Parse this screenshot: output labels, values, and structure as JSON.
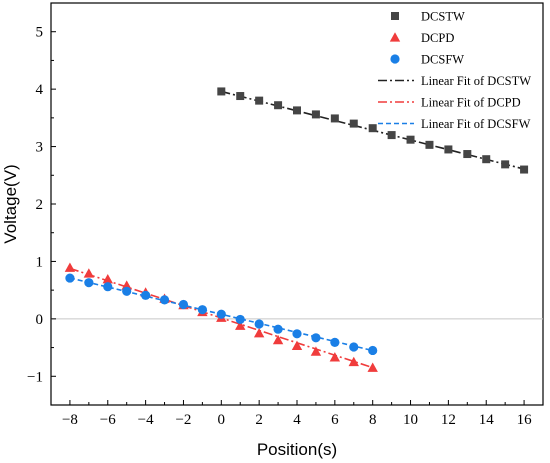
{
  "chart_data": {
    "type": "scatter",
    "title": "",
    "xlabel": "Position(s)",
    "ylabel": "Voltage(V)",
    "xlim": [
      -9,
      17
    ],
    "ylim": [
      -1.5,
      5.5
    ],
    "xticks": [
      -8,
      -6,
      -4,
      -2,
      0,
      2,
      4,
      6,
      8,
      10,
      12,
      14,
      16
    ],
    "yticks": [
      -1,
      0,
      1,
      2,
      3,
      4,
      5
    ],
    "grid": false,
    "zero_line": true,
    "legend_position": "top-right",
    "series": [
      {
        "name": "DCSTW",
        "marker": "square",
        "color": "#454545",
        "x": [
          0,
          1,
          2,
          3,
          4,
          5,
          6,
          7,
          8,
          9,
          10,
          11,
          12,
          13,
          14,
          15,
          16
        ],
        "y": [
          3.96,
          3.88,
          3.8,
          3.72,
          3.63,
          3.56,
          3.49,
          3.4,
          3.32,
          3.2,
          3.12,
          3.03,
          2.95,
          2.87,
          2.78,
          2.69,
          2.6
        ]
      },
      {
        "name": "DCPD",
        "marker": "triangle",
        "color": "#f03c3c",
        "x": [
          -8,
          -7,
          -6,
          -5,
          -4,
          -3,
          -2,
          -1,
          0,
          1,
          2,
          3,
          4,
          5,
          6,
          7,
          8
        ],
        "y": [
          0.89,
          0.79,
          0.69,
          0.58,
          0.46,
          0.35,
          0.24,
          0.12,
          0.02,
          -0.12,
          -0.25,
          -0.37,
          -0.47,
          -0.57,
          -0.67,
          -0.75,
          -0.85
        ]
      },
      {
        "name": "DCSFW",
        "marker": "circle",
        "color": "#1a7fe6",
        "x": [
          -8,
          -7,
          -6,
          -5,
          -4,
          -3,
          -2,
          -1,
          0,
          1,
          2,
          3,
          4,
          5,
          6,
          7,
          8
        ],
        "y": [
          0.71,
          0.63,
          0.56,
          0.48,
          0.41,
          0.33,
          0.25,
          0.16,
          0.08,
          -0.01,
          -0.09,
          -0.18,
          -0.26,
          -0.33,
          -0.41,
          -0.49,
          -0.55
        ]
      }
    ],
    "fits": [
      {
        "name": "Linear Fit of DCSTW",
        "color": "#222222",
        "dash": "dash-dot",
        "x": [
          0,
          16
        ],
        "slope": -0.0845,
        "intercept": 3.96
      },
      {
        "name": "Linear Fit of DCPD",
        "color": "#f03c3c",
        "dash": "dash-dot",
        "x": [
          -8,
          8
        ],
        "slope": -0.108,
        "intercept": 0.015
      },
      {
        "name": "Linear Fit of DCSFW",
        "color": "#1a7fe6",
        "dash": "dashed",
        "x": [
          -8,
          8
        ],
        "slope": -0.079,
        "intercept": 0.08
      }
    ]
  }
}
